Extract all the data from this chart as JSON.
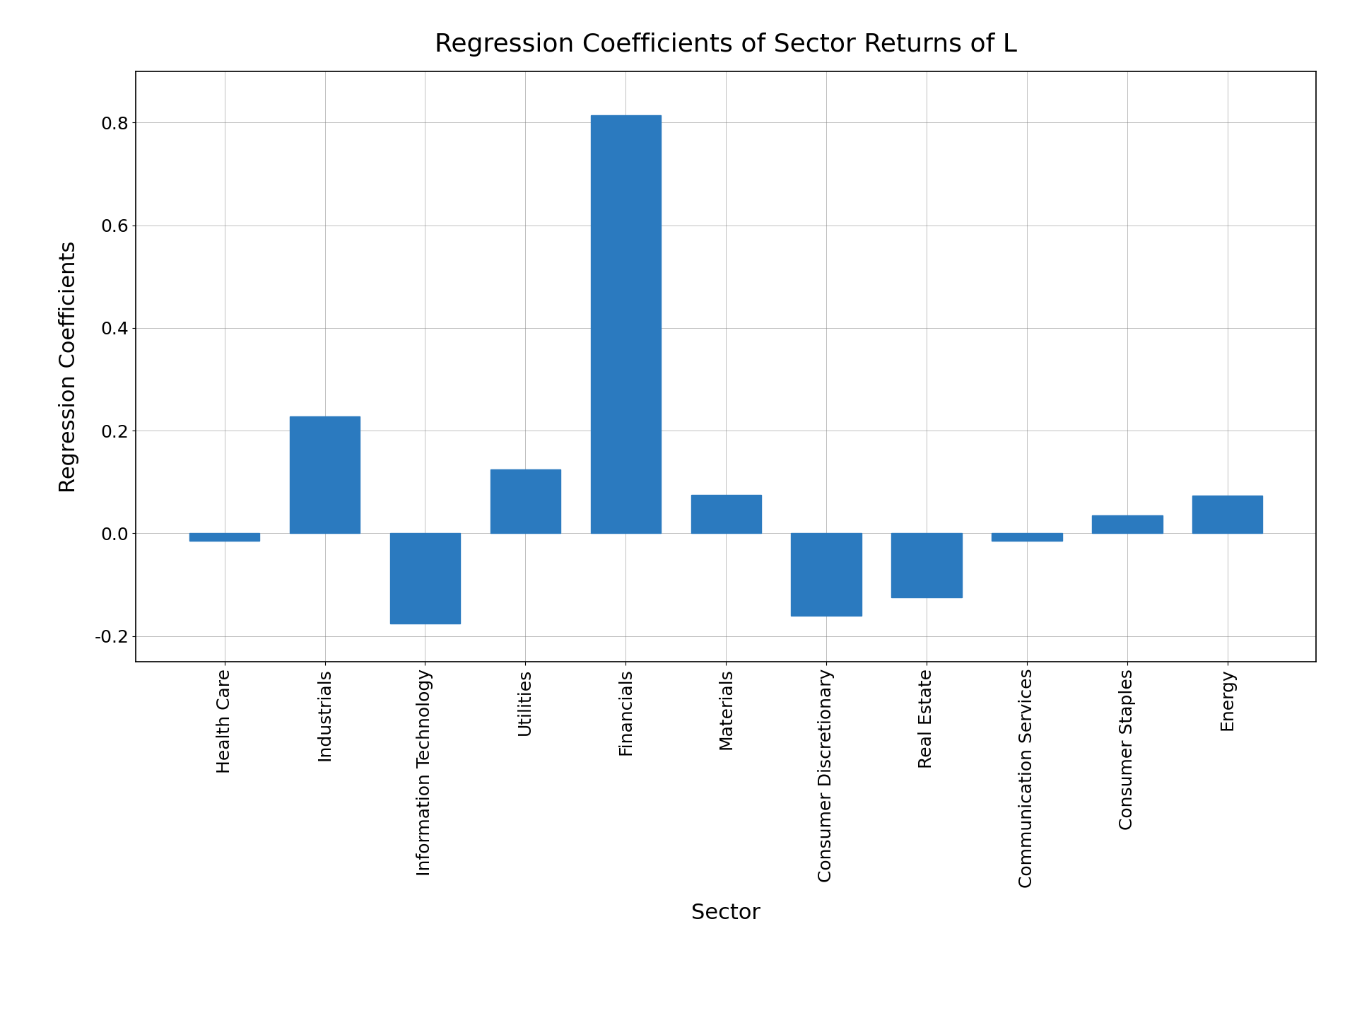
{
  "title": "Regression Coefficients of Sector Returns of L",
  "xlabel": "Sector",
  "ylabel": "Regression Coefficients",
  "categories": [
    "Health Care",
    "Industrials",
    "Information Technology",
    "Utilities",
    "Financials",
    "Materials",
    "Consumer Discretionary",
    "Real Estate",
    "Communication Services",
    "Consumer Staples",
    "Energy"
  ],
  "values": [
    -0.015,
    0.228,
    -0.175,
    0.125,
    0.815,
    0.075,
    -0.16,
    -0.125,
    -0.015,
    0.035,
    0.073
  ],
  "bar_color": "#2b7abf",
  "ylim": [
    -0.25,
    0.9
  ],
  "yticks": [
    -0.2,
    0.0,
    0.2,
    0.4,
    0.6,
    0.8
  ],
  "grid": true,
  "title_fontsize": 26,
  "label_fontsize": 22,
  "tick_fontsize": 18,
  "background_color": "#ffffff",
  "figure_size": [
    19.2,
    14.4
  ],
  "dpi": 100
}
